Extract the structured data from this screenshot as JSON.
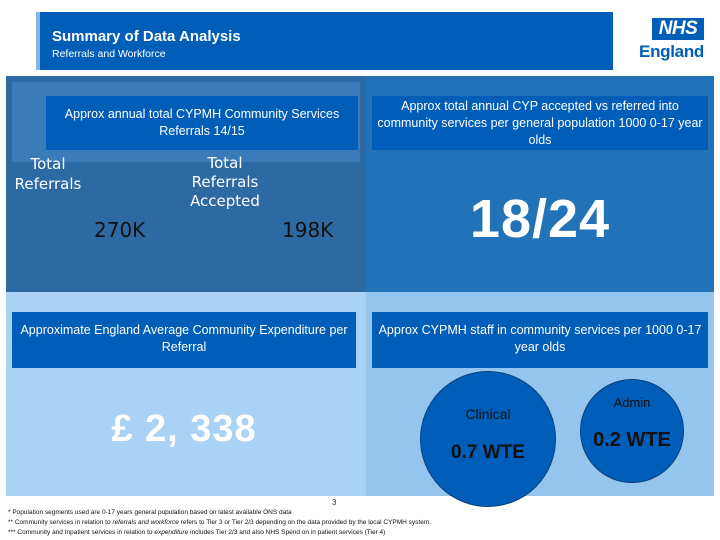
{
  "header": {
    "title": "Summary of Data Analysis",
    "subtitle": "Referrals and Workforce"
  },
  "logo": {
    "badge": "NHS",
    "word": "England"
  },
  "referrals": {
    "heading": "Approx annual total CYPMH Community Services Referrals 14/15",
    "total_label": "Total Referrals",
    "accepted_label": "Total Referrals Accepted",
    "total_value": "270K",
    "accepted_value": "198K"
  },
  "ratio": {
    "heading": "Approx total annual CYP accepted vs referred into community services per general population 1000 0-17 year olds",
    "value": "18/24"
  },
  "expenditure": {
    "heading": "Approximate England Average Community Expenditure per Referral",
    "value": "£ 2, 338"
  },
  "staff": {
    "heading": "Approx CYPMH staff in community services per 1000 0-17 year olds",
    "clinical_label": "Clinical",
    "clinical_value": "0.7 WTE",
    "admin_label": "Admin",
    "admin_value": "0.2 WTE"
  },
  "page_number": "3",
  "footnotes": {
    "f1": "* Population segments used are 0-17 years general population based on latest available ONS data",
    "f2_prefix": "** Community services in relation to ",
    "f2_italic": "referrals and workforce",
    "f2_suffix": " refers to Tier 3 or Tier 2/3 depending on the data provided by the local CYPMH system.",
    "f3_prefix": "*** Community and Inpatient services in relation to ",
    "f3_italic": "expenditure",
    "f3_suffix": " includes Tier 2/3 and also NHS Spend on in patient services (Tier 4)"
  },
  "colors": {
    "nhs_blue": "#005eb8",
    "panel_dark": "#2d6aa4",
    "panel_light": "#a9d2f5",
    "panel_light2": "#93c5ee"
  }
}
